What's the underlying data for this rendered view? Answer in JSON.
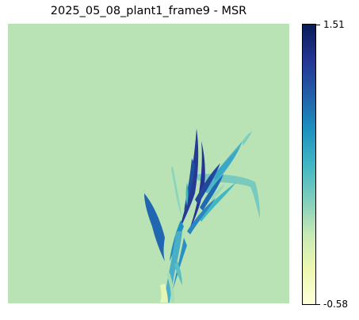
{
  "title": "2025_05_08_plant1_frame9 - MSR",
  "colormap": {
    "name": "YlGnBu",
    "min_label": "-0.58",
    "max_label": "1.51",
    "stops": [
      "#ffffd9",
      "#edf8b1",
      "#c7e9b4",
      "#7fcdbb",
      "#41b6c4",
      "#1d91c0",
      "#225ea8",
      "#253494",
      "#081d58"
    ]
  },
  "colors": {
    "background": "#b9e3b5",
    "leaf_dark": "#243a94",
    "leaf_mid": "#1e88bf",
    "leaf_light": "#5cbfc0",
    "stem_pale": "#e6f4b4"
  }
}
